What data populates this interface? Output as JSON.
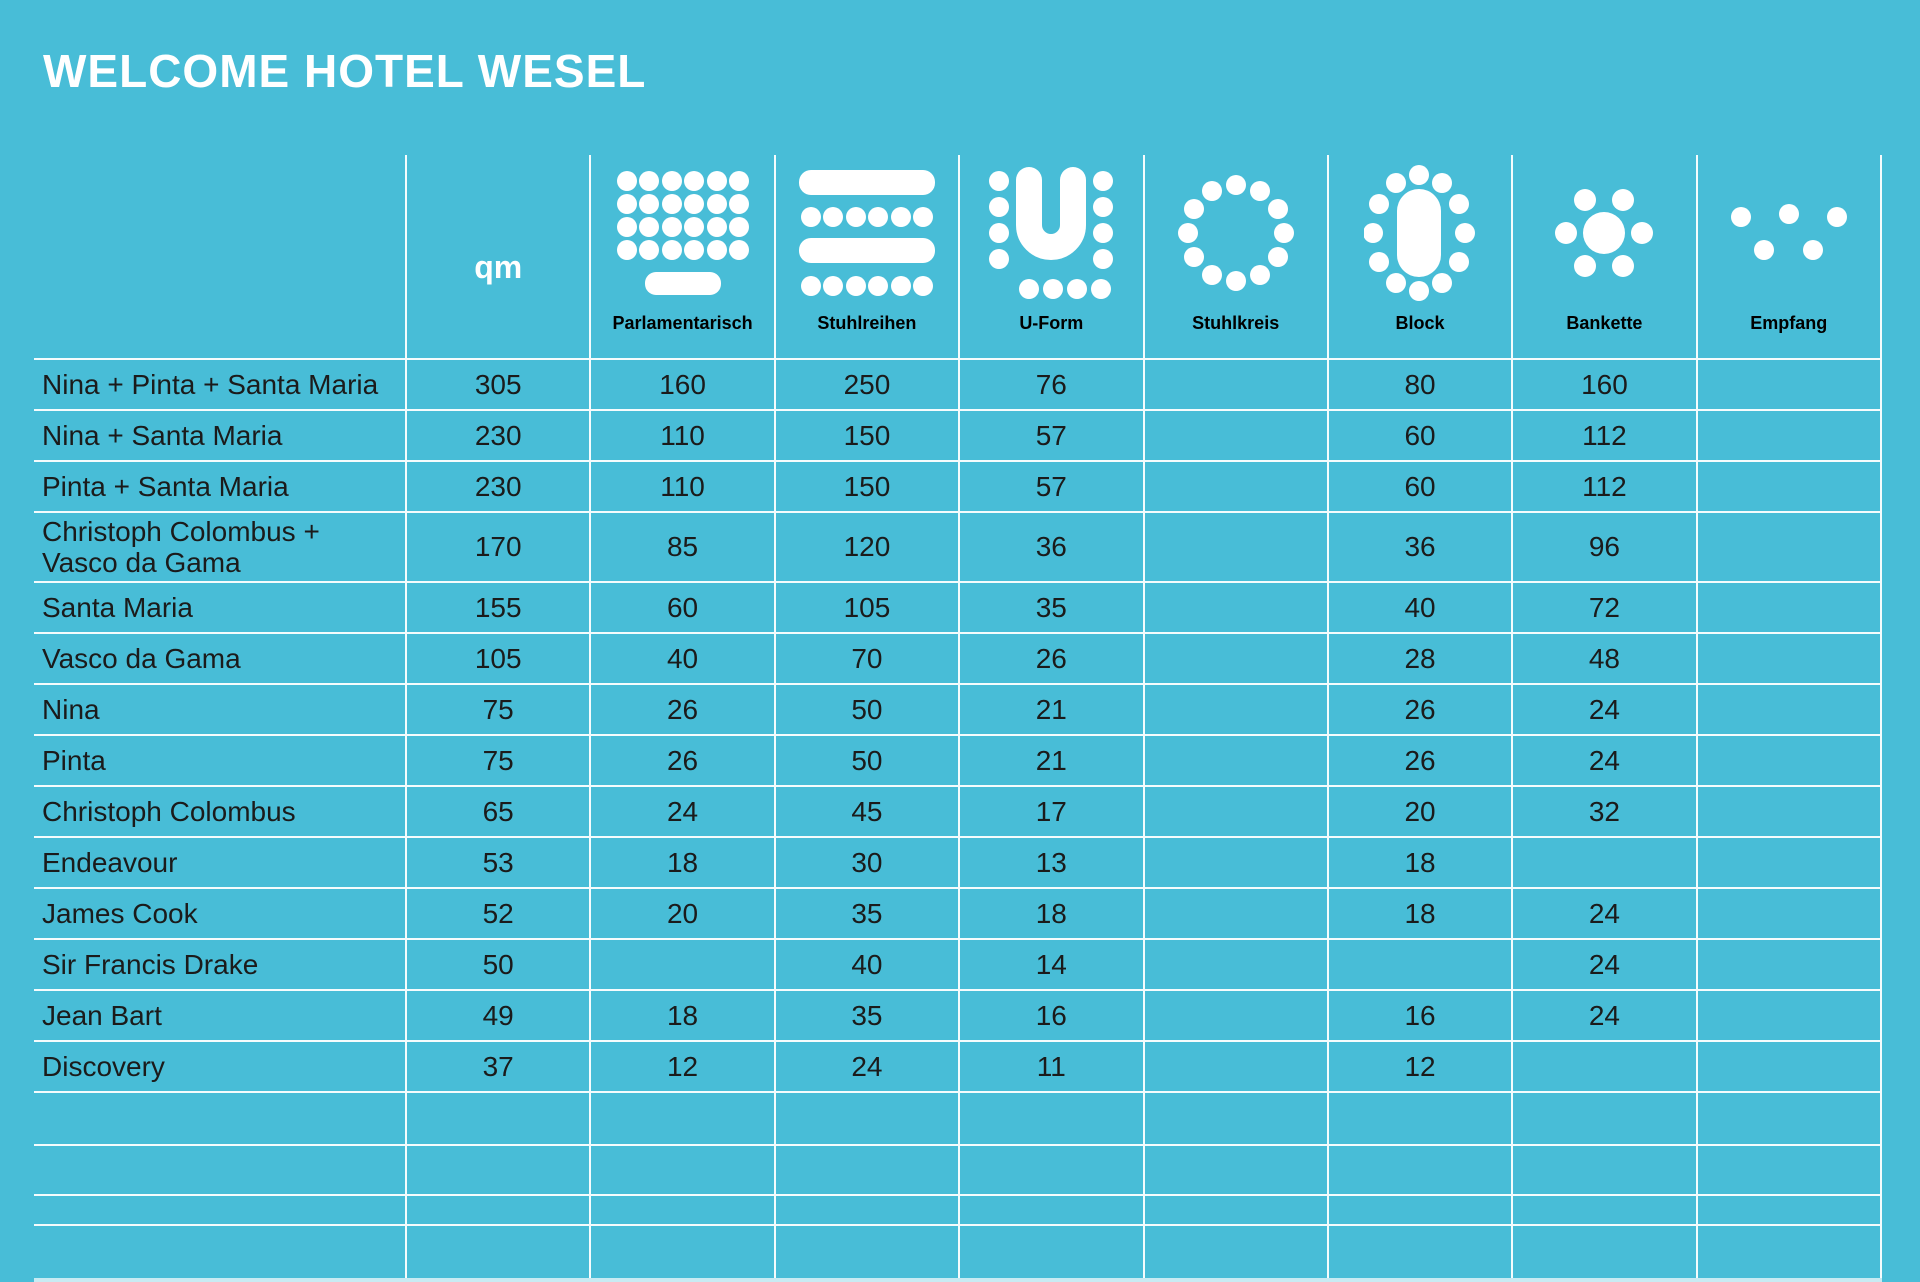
{
  "title": "WELCOME HOTEL WESEL",
  "colors": {
    "background": "#48BDD7",
    "title_text": "#FFFFFF",
    "body_text": "#1B1B1B",
    "header_label_text": "#000000",
    "grid_line": "#FFFFFF"
  },
  "table": {
    "unit_label": "qm",
    "columns": [
      "Parlamentarisch",
      "Stuhlreihen",
      "U-Form",
      "Stuhlkreis",
      "Block",
      "Bankette",
      "Empfang"
    ],
    "icon_names": [
      "parlamentarisch-icon",
      "stuhlreihen-icon",
      "u-form-icon",
      "stuhlkreis-icon",
      "block-icon",
      "bankette-icon",
      "empfang-icon"
    ],
    "rows": [
      {
        "name": "Nina + Pinta + Santa Maria",
        "qm": "305",
        "values": [
          "160",
          "250",
          "76",
          "",
          "80",
          "160",
          ""
        ]
      },
      {
        "name": "Nina + Santa Maria",
        "qm": "230",
        "values": [
          "110",
          "150",
          "57",
          "",
          "60",
          "112",
          ""
        ]
      },
      {
        "name": "Pinta + Santa Maria",
        "qm": "230",
        "values": [
          "110",
          "150",
          "57",
          "",
          "60",
          "112",
          ""
        ]
      },
      {
        "name": "Christoph Colombus + Vasco da Gama",
        "qm": "170",
        "values": [
          "85",
          "120",
          "36",
          "",
          "36",
          "96",
          ""
        ]
      },
      {
        "name": "Santa Maria",
        "qm": "155",
        "values": [
          "60",
          "105",
          "35",
          "",
          "40",
          "72",
          ""
        ]
      },
      {
        "name": "Vasco da Gama",
        "qm": "105",
        "values": [
          "40",
          "70",
          "26",
          "",
          "28",
          "48",
          ""
        ]
      },
      {
        "name": "Nina",
        "qm": "75",
        "values": [
          "26",
          "50",
          "21",
          "",
          "26",
          "24",
          ""
        ]
      },
      {
        "name": "Pinta",
        "qm": "75",
        "values": [
          "26",
          "50",
          "21",
          "",
          "26",
          "24",
          ""
        ]
      },
      {
        "name": "Christoph Colombus",
        "qm": "65",
        "values": [
          "24",
          "45",
          "17",
          "",
          "20",
          "32",
          ""
        ]
      },
      {
        "name": "Endeavour",
        "qm": "53",
        "values": [
          "18",
          "30",
          "13",
          "",
          "18",
          "",
          ""
        ]
      },
      {
        "name": "James Cook",
        "qm": "52",
        "values": [
          "20",
          "35",
          "18",
          "",
          "18",
          "24",
          ""
        ]
      },
      {
        "name": "Sir Francis Drake",
        "qm": "50",
        "values": [
          "",
          "40",
          "14",
          "",
          "",
          "24",
          ""
        ]
      },
      {
        "name": "Jean Bart",
        "qm": "49",
        "values": [
          "18",
          "35",
          "16",
          "",
          "16",
          "24",
          ""
        ]
      },
      {
        "name": "Discovery",
        "qm": "37",
        "values": [
          "12",
          "24",
          "11",
          "",
          "12",
          "",
          ""
        ]
      }
    ],
    "empty_row_heights": [
      51,
      48,
      28,
      52
    ]
  }
}
